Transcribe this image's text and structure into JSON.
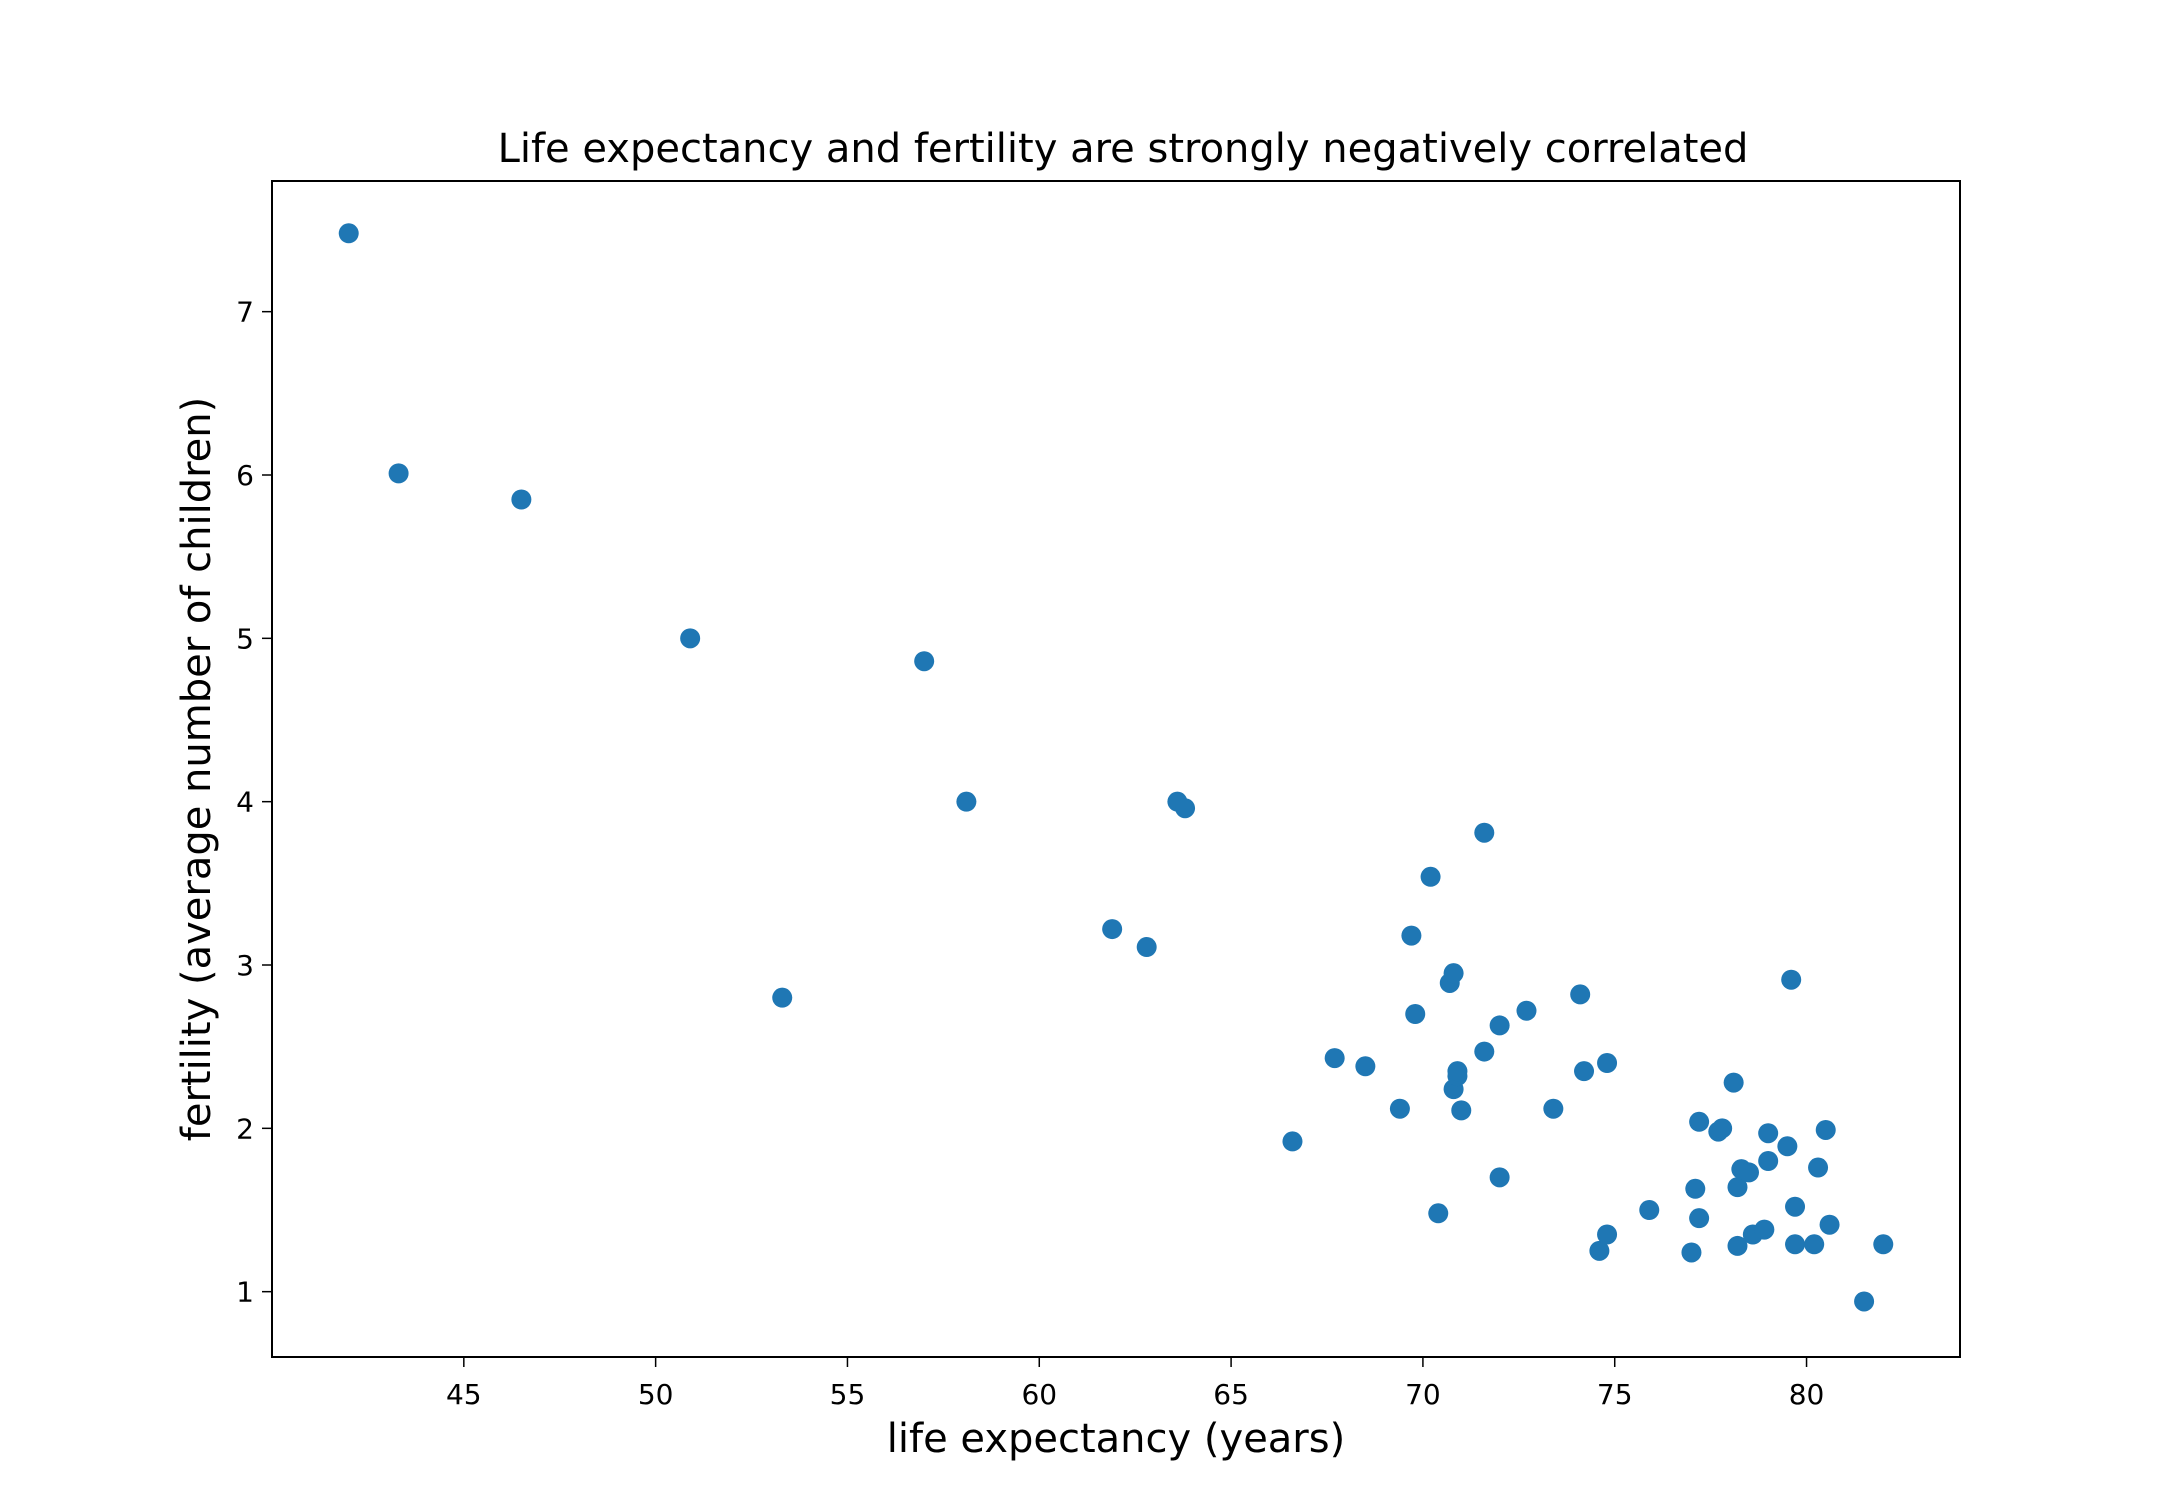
{
  "chart_data": {
    "type": "scatter",
    "title": "Life expectancy and fertility are strongly negatively correlated",
    "xlabel": "life expectancy (years)",
    "ylabel": "fertility (average number of children)",
    "xlim": [
      40.0,
      84.0
    ],
    "ylim": [
      0.6,
      7.8
    ],
    "xticks": [
      45,
      50,
      55,
      60,
      65,
      70,
      75,
      80
    ],
    "yticks": [
      1,
      2,
      3,
      4,
      5,
      6,
      7
    ],
    "grid": false,
    "marker_color": "#1f77b4",
    "points": [
      [
        42.0,
        7.48
      ],
      [
        43.3,
        6.01
      ],
      [
        46.5,
        5.85
      ],
      [
        50.9,
        5.0
      ],
      [
        53.3,
        2.8
      ],
      [
        57.0,
        4.86
      ],
      [
        58.1,
        4.0
      ],
      [
        61.9,
        3.22
      ],
      [
        62.8,
        3.11
      ],
      [
        63.6,
        4.0
      ],
      [
        63.8,
        3.96
      ],
      [
        66.6,
        1.92
      ],
      [
        67.7,
        2.43
      ],
      [
        68.5,
        2.38
      ],
      [
        69.4,
        2.12
      ],
      [
        69.7,
        3.18
      ],
      [
        69.8,
        2.7
      ],
      [
        70.2,
        3.54
      ],
      [
        70.4,
        1.48
      ],
      [
        70.7,
        2.89
      ],
      [
        70.8,
        2.95
      ],
      [
        70.8,
        2.24
      ],
      [
        70.9,
        2.32
      ],
      [
        70.9,
        2.35
      ],
      [
        71.0,
        2.11
      ],
      [
        71.6,
        3.81
      ],
      [
        71.6,
        2.47
      ],
      [
        72.0,
        2.63
      ],
      [
        72.0,
        1.7
      ],
      [
        72.7,
        2.72
      ],
      [
        73.4,
        2.12
      ],
      [
        74.1,
        2.82
      ],
      [
        74.2,
        2.35
      ],
      [
        74.6,
        1.25
      ],
      [
        74.8,
        2.4
      ],
      [
        74.8,
        1.35
      ],
      [
        75.9,
        1.5
      ],
      [
        77.0,
        1.24
      ],
      [
        77.1,
        1.63
      ],
      [
        77.2,
        1.45
      ],
      [
        77.2,
        2.04
      ],
      [
        77.7,
        1.98
      ],
      [
        77.8,
        2.0
      ],
      [
        78.1,
        2.28
      ],
      [
        78.2,
        1.28
      ],
      [
        78.2,
        1.64
      ],
      [
        78.3,
        1.75
      ],
      [
        78.5,
        1.73
      ],
      [
        78.6,
        1.35
      ],
      [
        78.9,
        1.38
      ],
      [
        79.0,
        1.8
      ],
      [
        79.0,
        1.97
      ],
      [
        79.5,
        1.89
      ],
      [
        79.6,
        2.91
      ],
      [
        79.7,
        1.52
      ],
      [
        79.7,
        1.29
      ],
      [
        80.2,
        1.29
      ],
      [
        80.3,
        1.76
      ],
      [
        80.5,
        1.99
      ],
      [
        80.6,
        1.41
      ],
      [
        81.5,
        0.94
      ],
      [
        82.0,
        1.29
      ]
    ]
  }
}
